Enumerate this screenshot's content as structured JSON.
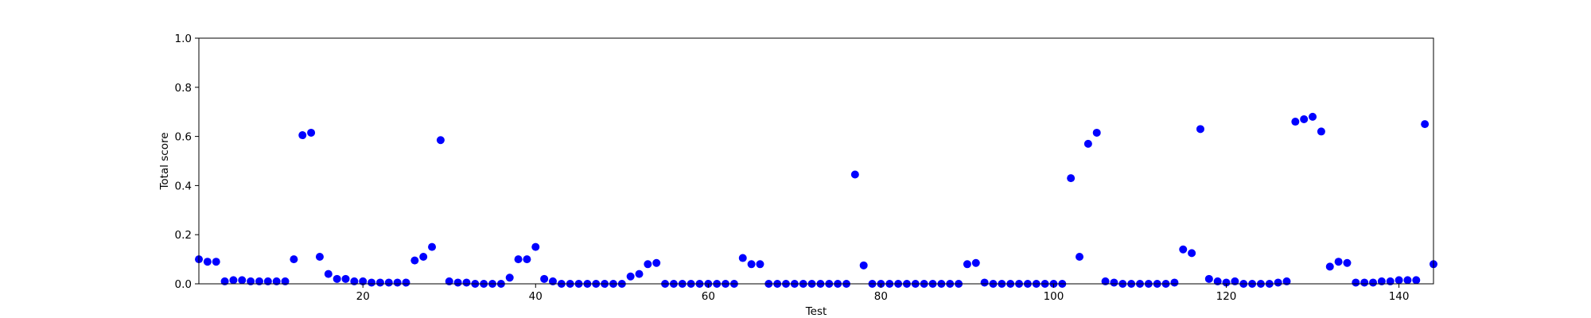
{
  "chart_data": {
    "type": "scatter",
    "title": "",
    "xlabel": "Test",
    "ylabel": "Total score",
    "xlim": [
      1,
      144
    ],
    "ylim": [
      0.0,
      1.0
    ],
    "xticks": [
      20,
      40,
      60,
      80,
      100,
      120,
      140
    ],
    "yticks": [
      "0.0",
      "0.2",
      "0.4",
      "0.6",
      "0.8",
      "1.0"
    ],
    "grid": false,
    "marker_color": "#0000ff",
    "x": [
      1,
      2,
      3,
      4,
      5,
      6,
      7,
      8,
      9,
      10,
      11,
      12,
      13,
      14,
      15,
      16,
      17,
      18,
      19,
      20,
      21,
      22,
      23,
      24,
      25,
      26,
      27,
      28,
      29,
      30,
      31,
      32,
      33,
      34,
      35,
      36,
      37,
      38,
      39,
      40,
      41,
      42,
      43,
      44,
      45,
      46,
      47,
      48,
      49,
      50,
      51,
      52,
      53,
      54,
      55,
      56,
      57,
      58,
      59,
      60,
      61,
      62,
      63,
      64,
      65,
      66,
      67,
      68,
      69,
      70,
      71,
      72,
      73,
      74,
      75,
      76,
      77,
      78,
      79,
      80,
      81,
      82,
      83,
      84,
      85,
      86,
      87,
      88,
      89,
      90,
      91,
      92,
      93,
      94,
      95,
      96,
      97,
      98,
      99,
      100,
      101,
      102,
      103,
      104,
      105,
      106,
      107,
      108,
      109,
      110,
      111,
      112,
      113,
      114,
      115,
      116,
      117,
      118,
      119,
      120,
      121,
      122,
      123,
      124,
      125,
      126,
      127,
      128,
      129,
      130,
      131,
      132,
      133,
      134,
      135,
      136,
      137,
      138,
      139,
      140,
      141,
      142,
      143,
      144
    ],
    "y": [
      0.1,
      0.09,
      0.09,
      0.01,
      0.015,
      0.015,
      0.01,
      0.01,
      0.01,
      0.01,
      0.01,
      0.1,
      0.605,
      0.615,
      0.11,
      0.04,
      0.02,
      0.02,
      0.01,
      0.01,
      0.005,
      0.005,
      0.005,
      0.005,
      0.005,
      0.095,
      0.11,
      0.15,
      0.585,
      0.01,
      0.005,
      0.005,
      0.0,
      0.0,
      0.0,
      0.0,
      0.025,
      0.1,
      0.1,
      0.15,
      0.02,
      0.01,
      0.0,
      0.0,
      0.0,
      0.0,
      0.0,
      0.0,
      0.0,
      0.0,
      0.03,
      0.04,
      0.08,
      0.085,
      0.0,
      0.0,
      0.0,
      0.0,
      0.0,
      0.0,
      0.0,
      0.0,
      0.0,
      0.105,
      0.08,
      0.08,
      0.0,
      0.0,
      0.0,
      0.0,
      0.0,
      0.0,
      0.0,
      0.0,
      0.0,
      0.0,
      0.445,
      0.075,
      0.0,
      0.0,
      0.0,
      0.0,
      0.0,
      0.0,
      0.0,
      0.0,
      0.0,
      0.0,
      0.0,
      0.08,
      0.085,
      0.005,
      0.0,
      0.0,
      0.0,
      0.0,
      0.0,
      0.0,
      0.0,
      0.0,
      0.0,
      0.43,
      0.11,
      0.57,
      0.615,
      0.01,
      0.005,
      0.0,
      0.0,
      0.0,
      0.0,
      0.0,
      0.0,
      0.005,
      0.14,
      0.125,
      0.63,
      0.02,
      0.01,
      0.005,
      0.01,
      0.0,
      0.0,
      0.0,
      0.0,
      0.005,
      0.01,
      0.66,
      0.67,
      0.68,
      0.62,
      0.07,
      0.09,
      0.085,
      0.005,
      0.005,
      0.005,
      0.01,
      0.01,
      0.015,
      0.015,
      0.015,
      0.65,
      0.08
    ]
  }
}
